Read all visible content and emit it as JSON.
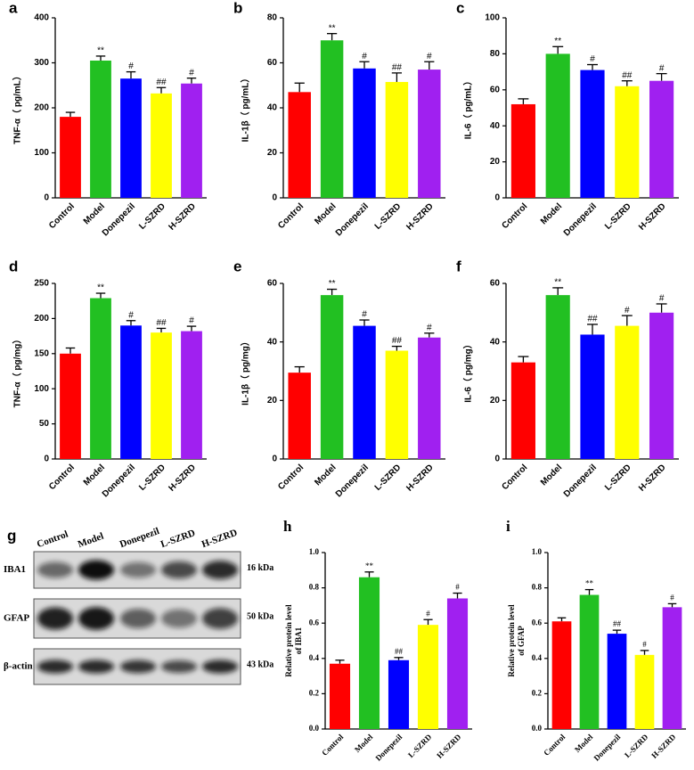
{
  "chart_data": [
    {
      "type": "bar",
      "label": "a",
      "ylabel": "TNF-α（ pg/mL）",
      "categories": [
        "Control",
        "Model",
        "Donepezil",
        "L-SZRD",
        "H-SZRD"
      ],
      "values": [
        180,
        305,
        265,
        232,
        254
      ],
      "errors": [
        10,
        10,
        15,
        13,
        12
      ],
      "annotations": [
        null,
        "**",
        "#",
        "##",
        "#"
      ],
      "colors": [
        "#ff0000",
        "#22c022",
        "#0000ff",
        "#ffff00",
        "#a020f0"
      ],
      "ylim": [
        0,
        400
      ],
      "yticks": [
        0,
        100,
        200,
        300,
        400
      ],
      "font": "sans"
    },
    {
      "type": "bar",
      "label": "b",
      "ylabel": "IL-1β（ pg/mL）",
      "categories": [
        "Control",
        "Model",
        "Donepezil",
        "L-SZRD",
        "H-SZRD"
      ],
      "values": [
        47,
        70,
        57.5,
        51.5,
        57
      ],
      "errors": [
        4,
        3,
        3,
        4,
        3.5
      ],
      "annotations": [
        null,
        "**",
        "#",
        "##",
        "#"
      ],
      "colors": [
        "#ff0000",
        "#22c022",
        "#0000ff",
        "#ffff00",
        "#a020f0"
      ],
      "ylim": [
        0,
        80
      ],
      "yticks": [
        0,
        20,
        40,
        60,
        80
      ],
      "font": "sans"
    },
    {
      "type": "bar",
      "label": "c",
      "ylabel": "IL-6（ pg/mL）",
      "categories": [
        "Control",
        "Model",
        "Donepezil",
        "L-SZRD",
        "H-SZRD"
      ],
      "values": [
        52,
        80,
        71,
        62,
        65
      ],
      "errors": [
        3,
        4,
        3,
        3,
        4
      ],
      "annotations": [
        null,
        "**",
        "#",
        "##",
        "#"
      ],
      "colors": [
        "#ff0000",
        "#22c022",
        "#0000ff",
        "#ffff00",
        "#a020f0"
      ],
      "ylim": [
        0,
        100
      ],
      "yticks": [
        0,
        20,
        40,
        60,
        80,
        100
      ],
      "font": "sans"
    },
    {
      "type": "bar",
      "label": "d",
      "ylabel": "TNF-α（ pg/mg）",
      "categories": [
        "Control",
        "Model",
        "Donepezil",
        "L-SZRD",
        "H-SZRD"
      ],
      "values": [
        150,
        229,
        190,
        180,
        182
      ],
      "errors": [
        8,
        7,
        7,
        6,
        7
      ],
      "annotations": [
        null,
        "**",
        "#",
        "##",
        "#"
      ],
      "colors": [
        "#ff0000",
        "#22c022",
        "#0000ff",
        "#ffff00",
        "#a020f0"
      ],
      "ylim": [
        0,
        250
      ],
      "yticks": [
        0,
        50,
        100,
        150,
        200,
        250
      ],
      "font": "sans"
    },
    {
      "type": "bar",
      "label": "e",
      "ylabel": "IL-1β（ pg/mg）",
      "categories": [
        "Control",
        "Model",
        "Donepezil",
        "L-SZRD",
        "H-SZRD"
      ],
      "values": [
        29.5,
        56,
        45.5,
        37,
        41.5
      ],
      "errors": [
        2,
        2,
        2,
        1.5,
        1.5
      ],
      "annotations": [
        null,
        "**",
        "#",
        "##",
        "#"
      ],
      "colors": [
        "#ff0000",
        "#22c022",
        "#0000ff",
        "#ffff00",
        "#a020f0"
      ],
      "ylim": [
        0,
        60
      ],
      "yticks": [
        0,
        20,
        40,
        60
      ],
      "font": "sans"
    },
    {
      "type": "bar",
      "label": "f",
      "ylabel": "IL-6（ pg/mg）",
      "categories": [
        "Control",
        "Model",
        "Donepezil",
        "L-SZRD",
        "H-SZRD"
      ],
      "values": [
        33,
        56,
        42.5,
        45.5,
        50
      ],
      "errors": [
        2,
        2.5,
        3.5,
        3.5,
        3
      ],
      "annotations": [
        null,
        "**",
        "##",
        "#",
        "#"
      ],
      "colors": [
        "#ff0000",
        "#22c022",
        "#0000ff",
        "#ffff00",
        "#a020f0"
      ],
      "ylim": [
        0,
        60
      ],
      "yticks": [
        0,
        20,
        40,
        60
      ],
      "font": "sans"
    },
    {
      "type": "bar",
      "label": "h",
      "ylabel": [
        "Relative protein level",
        "of IBA1"
      ],
      "categories": [
        "Control",
        "Model",
        "Donepezil",
        "L-SZRD",
        "H-SZRD"
      ],
      "values": [
        0.37,
        0.86,
        0.39,
        0.59,
        0.74
      ],
      "errors": [
        0.02,
        0.03,
        0.015,
        0.03,
        0.03
      ],
      "annotations": [
        null,
        "**",
        "##",
        "#",
        "#"
      ],
      "colors": [
        "#ff0000",
        "#22c022",
        "#0000ff",
        "#ffff00",
        "#a020f0"
      ],
      "ylim": [
        0,
        1
      ],
      "yticks": [
        {
          "value": 0,
          "label": "0.0"
        },
        0.2,
        0.4,
        0.6,
        0.8,
        {
          "value": 1,
          "label": "1.0"
        }
      ],
      "font": "serif"
    },
    {
      "type": "bar",
      "label": "i",
      "ylabel": [
        "Relative protein level",
        "of GFAP"
      ],
      "categories": [
        "Control",
        "Model",
        "Donepezil",
        "L-SZRD",
        "H-SZRD"
      ],
      "values": [
        0.61,
        0.76,
        0.54,
        0.42,
        0.69
      ],
      "errors": [
        0.02,
        0.03,
        0.02,
        0.025,
        0.02
      ],
      "annotations": [
        null,
        "**",
        "##",
        "#",
        "#"
      ],
      "colors": [
        "#ff0000",
        "#22c022",
        "#0000ff",
        "#ffff00",
        "#a020f0"
      ],
      "ylim": [
        0,
        1
      ],
      "yticks": [
        {
          "value": 0,
          "label": "0.0"
        },
        0.2,
        0.4,
        0.6,
        0.8,
        {
          "value": 1,
          "label": "1.0"
        }
      ],
      "font": "serif"
    }
  ],
  "blot": {
    "label": "g",
    "lanes": [
      "Control",
      "Model",
      "Donepezil",
      "L-SZRD",
      "H-SZRD"
    ],
    "rows": [
      {
        "name": "IBA1",
        "size": "16 kDa"
      },
      {
        "name": "GFAP",
        "size": "50 kDa"
      },
      {
        "name": "β-actin",
        "size": "43 kDa"
      }
    ]
  }
}
